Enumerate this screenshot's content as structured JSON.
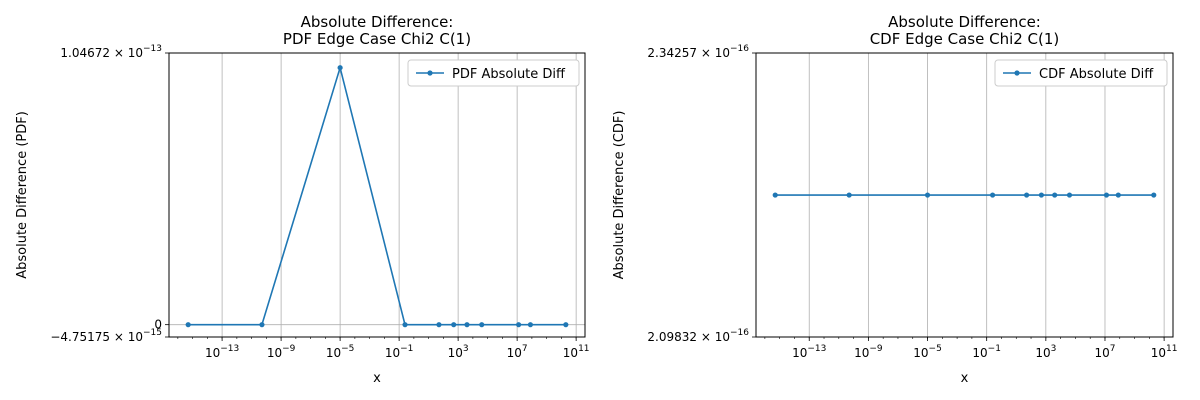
{
  "chart_data": [
    {
      "type": "line",
      "title": [
        "Absolute Difference:",
        "PDF Edge Case Chi2 C(1)"
      ],
      "xlabel": "x",
      "ylabel": "Absolute Difference (PDF)",
      "xscale": "log",
      "x_ticks": [
        {
          "base": "10",
          "exp": "−13",
          "value": -13
        },
        {
          "base": "10",
          "exp": "−9",
          "value": -9
        },
        {
          "base": "10",
          "exp": "−5",
          "value": -5
        },
        {
          "base": "10",
          "exp": "−1",
          "value": -1
        },
        {
          "base": "10",
          "exp": "3",
          "value": 3
        },
        {
          "base": "10",
          "exp": "7",
          "value": 7
        },
        {
          "base": "10",
          "exp": "11",
          "value": 11
        }
      ],
      "y_ticks": [
        {
          "mant": "1.04672",
          "exp": "−13",
          "value": 1.04672e-13
        },
        {
          "label": "0",
          "value": 0
        },
        {
          "mant": "−4.75175",
          "exp": "−15",
          "value": -4.75175e-15
        }
      ],
      "ylim": [
        -4.75175e-15,
        1.04672e-13
      ],
      "xlim_log10": [
        -16.6,
        11.6
      ],
      "grid": true,
      "legend_position": "top-right",
      "series": [
        {
          "name": "PDF Absolute Diff",
          "color": "#1f77b4",
          "x_log10": [
            -15.3,
            -10.3,
            -5,
            -0.6,
            1.7,
            2.7,
            3.6,
            4.6,
            7.1,
            7.9,
            10.3
          ],
          "y": [
            0,
            0,
            9.9e-14,
            0,
            0,
            0,
            0,
            0,
            0,
            0,
            0
          ]
        }
      ]
    },
    {
      "type": "line",
      "title": [
        "Absolute Difference:",
        "CDF Edge Case Chi2 C(1)"
      ],
      "xlabel": "x",
      "ylabel": "Absolute Difference (CDF)",
      "xscale": "log",
      "x_ticks": [
        {
          "base": "10",
          "exp": "−13",
          "value": -13
        },
        {
          "base": "10",
          "exp": "−9",
          "value": -9
        },
        {
          "base": "10",
          "exp": "−5",
          "value": -5
        },
        {
          "base": "10",
          "exp": "−1",
          "value": -1
        },
        {
          "base": "10",
          "exp": "3",
          "value": 3
        },
        {
          "base": "10",
          "exp": "7",
          "value": 7
        },
        {
          "base": "10",
          "exp": "11",
          "value": 11
        }
      ],
      "y_ticks": [
        {
          "mant": "2.34257",
          "exp": "−16",
          "value": 2.34257e-16
        },
        {
          "mant": "2.09832",
          "exp": "−16",
          "value": 2.09832e-16
        }
      ],
      "ylim": [
        2.09832e-16,
        2.34257e-16
      ],
      "xlim_log10": [
        -16.6,
        11.6
      ],
      "grid": true,
      "legend_position": "top-right",
      "series": [
        {
          "name": "CDF Absolute Diff",
          "color": "#1f77b4",
          "x_log10": [
            -15.3,
            -10.3,
            -5,
            -0.6,
            1.7,
            2.7,
            3.6,
            4.6,
            7.1,
            7.9,
            10.3
          ],
          "y": [
            2.2204e-16,
            2.2204e-16,
            2.2204e-16,
            2.2204e-16,
            2.2204e-16,
            2.2204e-16,
            2.2204e-16,
            2.2204e-16,
            2.2204e-16,
            2.2204e-16,
            2.2204e-16
          ]
        }
      ]
    }
  ]
}
